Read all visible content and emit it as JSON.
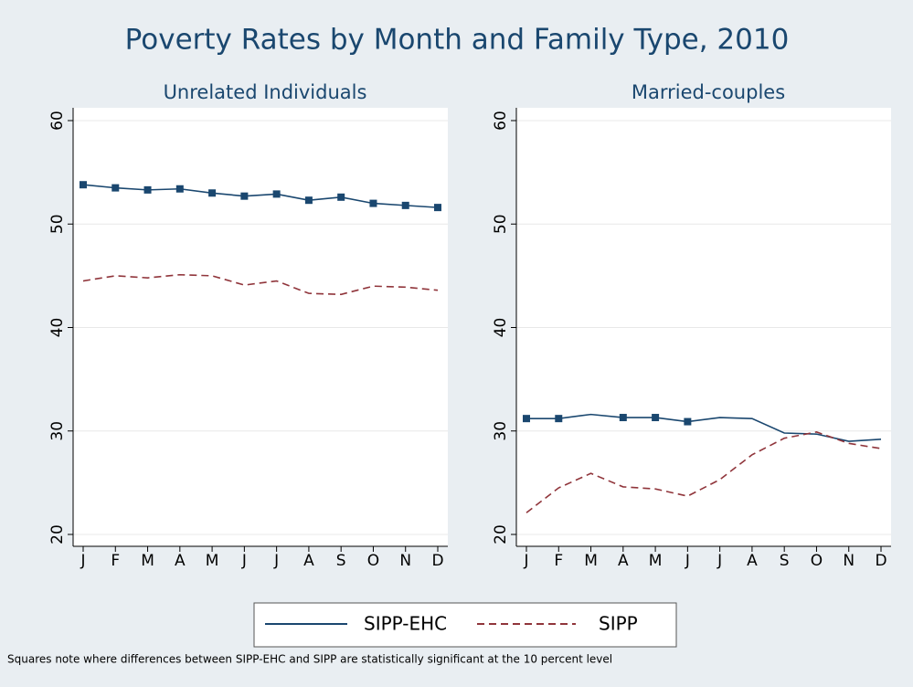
{
  "title": "Poverty Rates by Month and Family Type, 2010",
  "note": "Squares note where differences between SIPP-EHC and SIPP are statistically significant at the 10 percent level",
  "chart_data": [
    {
      "type": "line",
      "title": "Unrelated Individuals",
      "categories": [
        "J",
        "F",
        "M",
        "A",
        "M",
        "J",
        "J",
        "A",
        "S",
        "O",
        "N",
        "D"
      ],
      "series": [
        {
          "name": "SIPP-EHC",
          "color": "#1a476f",
          "dash": false,
          "values": [
            53.8,
            53.5,
            53.3,
            53.4,
            53.0,
            52.7,
            52.9,
            52.3,
            52.6,
            52.0,
            51.8,
            51.6
          ],
          "significant": [
            true,
            true,
            true,
            true,
            true,
            true,
            true,
            true,
            true,
            true,
            true,
            true
          ]
        },
        {
          "name": "SIPP",
          "color": "#90353b",
          "dash": true,
          "values": [
            44.5,
            45.0,
            44.8,
            45.1,
            45.0,
            44.1,
            44.5,
            43.3,
            43.2,
            44.0,
            43.9,
            43.6
          ]
        }
      ],
      "ylim": [
        20,
        60
      ],
      "yticks": [
        20,
        30,
        40,
        50,
        60
      ],
      "grid": true
    },
    {
      "type": "line",
      "title": "Married-couples",
      "categories": [
        "J",
        "F",
        "M",
        "A",
        "M",
        "J",
        "J",
        "A",
        "S",
        "O",
        "N",
        "D"
      ],
      "series": [
        {
          "name": "SIPP-EHC",
          "color": "#1a476f",
          "dash": false,
          "values": [
            31.2,
            31.2,
            31.6,
            31.3,
            31.3,
            30.9,
            31.3,
            31.2,
            29.8,
            29.7,
            29.0,
            29.2
          ],
          "significant": [
            true,
            true,
            false,
            true,
            true,
            true,
            false,
            false,
            false,
            false,
            false,
            false
          ]
        },
        {
          "name": "SIPP",
          "color": "#90353b",
          "dash": true,
          "values": [
            22.1,
            24.5,
            25.9,
            24.6,
            24.4,
            23.7,
            25.3,
            27.7,
            29.3,
            29.9,
            28.8,
            28.3
          ]
        }
      ],
      "ylim": [
        20,
        60
      ],
      "yticks": [
        20,
        30,
        40,
        50,
        60
      ],
      "grid": true
    }
  ]
}
